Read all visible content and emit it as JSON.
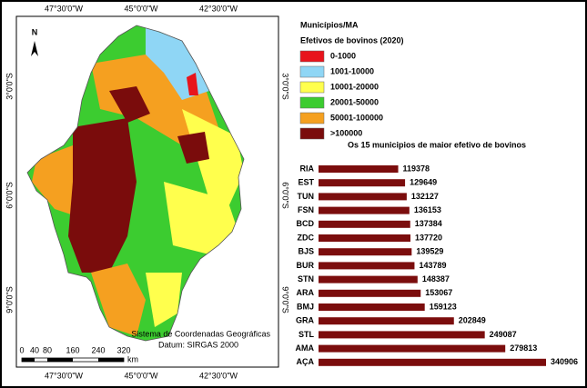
{
  "map": {
    "legend_title": "Municípios/MA",
    "legend_subtitle": "Efetivos de bovinos (2020)",
    "classes": [
      {
        "label": "0-1000",
        "color": "#e8141c"
      },
      {
        "label": "1001-10000",
        "color": "#8fd6f5"
      },
      {
        "label": "10001-20000",
        "color": "#ffff4d"
      },
      {
        "label": "20001-50000",
        "color": "#3ccc30"
      },
      {
        "label": "50001-100000",
        "color": "#f5a020"
      },
      {
        "label": ">100000",
        "color": "#7a0c0c"
      }
    ],
    "north": "N",
    "lon_labels": [
      "47°30'0\"W",
      "45°0'0\"W",
      "42°30'0\"W"
    ],
    "lat_labels": [
      "3°0'0\"S",
      "6°0'0\"S",
      "9°0'0\"S"
    ],
    "note": [
      "Sistema de Coordenadas Geográficas",
      "Datum: SIRGAS  2000"
    ],
    "scale_labels": [
      0,
      40,
      80,
      160,
      240,
      320
    ],
    "scale_unit": "km"
  },
  "chart_data": {
    "type": "bar",
    "orientation": "horizontal",
    "title": "Os 15 municipios de maior efetivo de bovinos",
    "categories": [
      "RIA",
      "EST",
      "TUN",
      "FSN",
      "BCD",
      "ZDC",
      "BJS",
      "BUR",
      "STN",
      "ARA",
      "BMJ",
      "GRA",
      "STL",
      "AMA",
      "AÇA"
    ],
    "values": [
      119378,
      129649,
      132127,
      136153,
      137384,
      137720,
      139529,
      143789,
      148387,
      153067,
      159123,
      202849,
      249087,
      279813,
      340906
    ],
    "color": "#7b0d0d"
  }
}
